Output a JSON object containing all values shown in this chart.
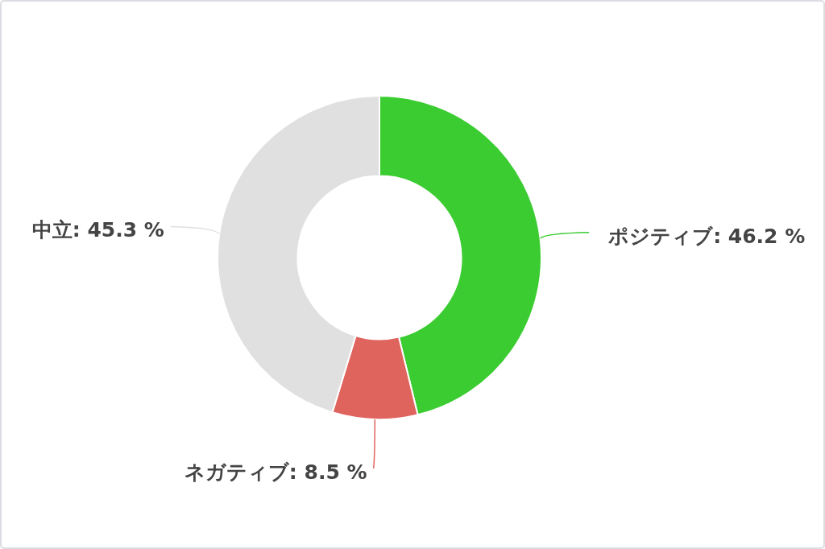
{
  "chart_data": {
    "type": "donut",
    "categories": [
      "ポジティブ",
      "ネガティブ",
      "中立"
    ],
    "values": [
      46.2,
      8.5,
      45.3
    ],
    "colors": [
      "#3bcc31",
      "#e0645e",
      "#e0e0e0"
    ],
    "value_labels": [
      "46.2 %",
      "8.5 %",
      "45.3 %"
    ]
  }
}
